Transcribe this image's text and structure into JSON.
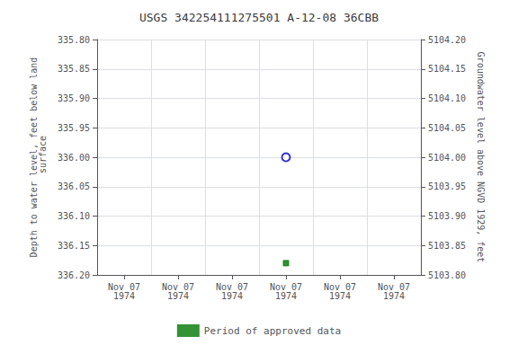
{
  "chart_data": {
    "type": "scatter",
    "title": "USGS 342254111275501 A-12-08 36CBB",
    "ylabel": "Depth to water level, feet below land\n surface",
    "y2label": "Groundwater level above NGVD 1929, feet",
    "categories": [
      "Nov 07\n1974",
      "Nov 07\n1974",
      "Nov 07\n1974",
      "Nov 07\n1974",
      "Nov 07\n1974",
      "Nov 07\n1974"
    ],
    "series": [
      {
        "color": "#0000cc",
        "marker": "circle",
        "values": [
          null,
          null,
          null,
          336.0,
          null,
          null
        ]
      },
      {
        "name": "Period of approved data",
        "color": "#007700",
        "marker": "square",
        "values": [
          null,
          null,
          null,
          336.18,
          null,
          null
        ]
      }
    ],
    "ylim": [
      336.2,
      335.8
    ],
    "yticks": [
      {
        "value": 335.8,
        "label": "335.80"
      },
      {
        "value": 335.85,
        "label": "335.85"
      },
      {
        "value": 335.9,
        "label": "335.90"
      },
      {
        "value": 335.95,
        "label": "335.95"
      },
      {
        "value": 336.0,
        "label": "336.00"
      },
      {
        "value": 336.05,
        "label": "336.05"
      },
      {
        "value": 336.1,
        "label": "336.10"
      },
      {
        "value": 336.15,
        "label": "336.15"
      },
      {
        "value": 336.2,
        "label": "336.20"
      }
    ],
    "y2lim": [
      5103.8,
      5104.2
    ],
    "y2ticks": [
      {
        "value": 5104.2,
        "label": "5104.20"
      },
      {
        "value": 5104.15,
        "label": "5104.15"
      },
      {
        "value": 5104.1,
        "label": "5104.10"
      },
      {
        "value": 5104.05,
        "label": "5104.05"
      },
      {
        "value": 5104.0,
        "label": "5104.00"
      },
      {
        "value": 5103.95,
        "label": "5103.95"
      },
      {
        "value": 5103.9,
        "label": "5103.90"
      },
      {
        "value": 5103.85,
        "label": "5103.85"
      },
      {
        "value": 5103.8,
        "label": "5103.80"
      }
    ],
    "grid": true,
    "legend": "bottom"
  }
}
